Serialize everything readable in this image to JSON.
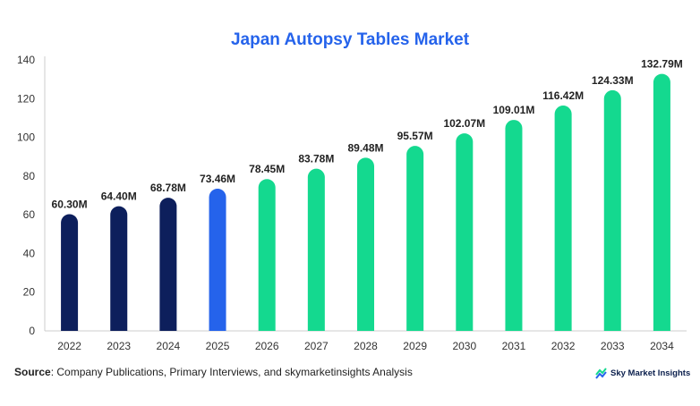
{
  "chart_data": {
    "type": "bar",
    "title": "Japan Autopsy Tables Market",
    "categories": [
      "2022",
      "2023",
      "2024",
      "2025",
      "2026",
      "2027",
      "2028",
      "2029",
      "2030",
      "2031",
      "2032",
      "2033",
      "2034"
    ],
    "values": [
      60.3,
      64.4,
      68.78,
      73.46,
      78.45,
      83.78,
      89.48,
      95.57,
      102.07,
      109.01,
      116.42,
      124.33,
      132.79
    ],
    "value_labels": [
      "60.30M",
      "64.40M",
      "68.78M",
      "73.46M",
      "78.45M",
      "83.78M",
      "89.48M",
      "95.57M",
      "102.07M",
      "109.01M",
      "116.42M",
      "124.33M",
      "132.79M"
    ],
    "ylim": [
      0,
      140
    ],
    "yticks": [
      0,
      20,
      40,
      60,
      80,
      100,
      120,
      140
    ],
    "xlabel": "",
    "ylabel": "",
    "grid": false,
    "colors": {
      "historical": "#0d1f5c",
      "current": "#2563eb",
      "forecast": "#14d98f"
    },
    "bar_color_groups": [
      "historical",
      "historical",
      "historical",
      "current",
      "forecast",
      "forecast",
      "forecast",
      "forecast",
      "forecast",
      "forecast",
      "forecast",
      "forecast",
      "forecast"
    ]
  },
  "footer": {
    "source_label": "Source",
    "source_text": ": Company Publications, Primary Interviews, and skymarketinsights Analysis",
    "brand": "Sky Market Insights",
    "brand_icon": "sky-market-insights-logo-icon"
  }
}
